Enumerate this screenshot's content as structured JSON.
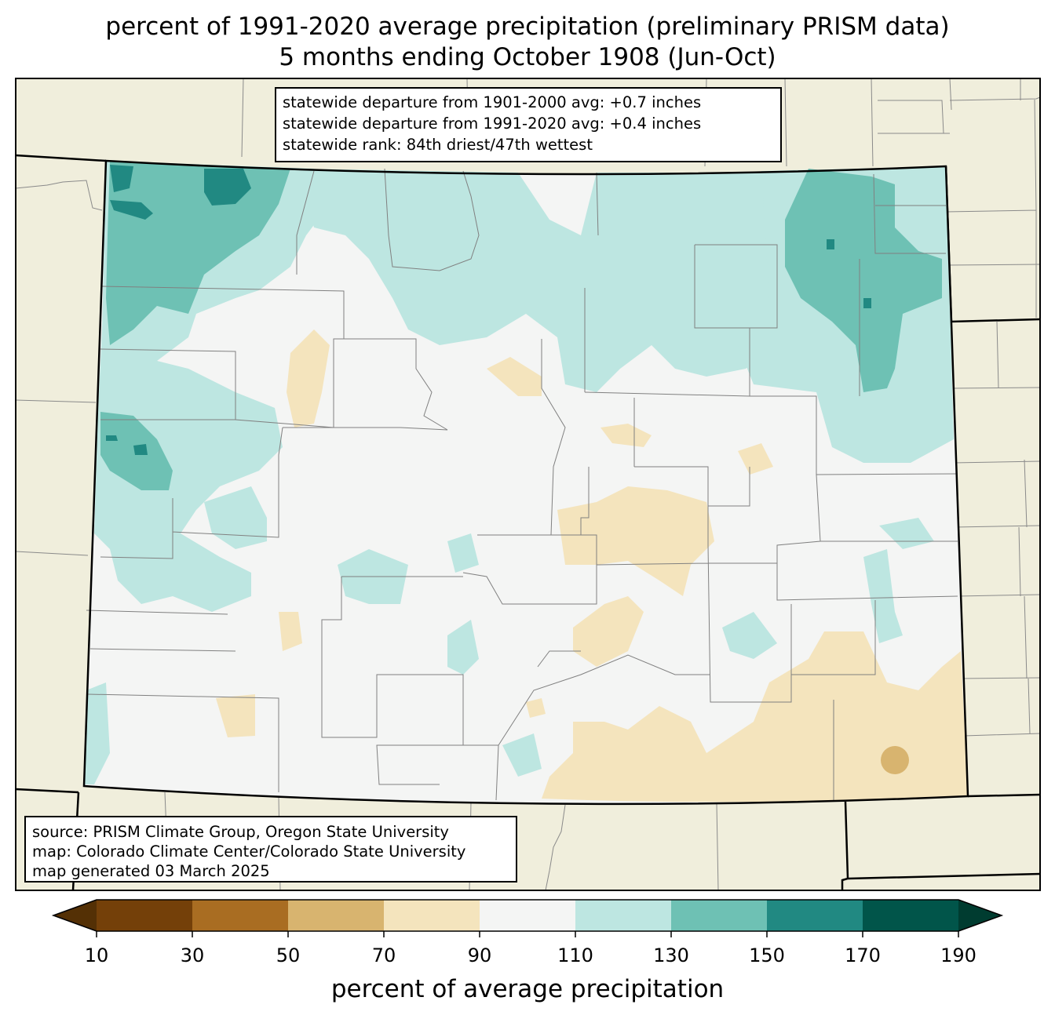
{
  "title": {
    "line1": "percent of 1991-2020 average precipitation (preliminary PRISM data)",
    "line2": "5 months ending October 1908 (Jun-Oct)"
  },
  "stats": {
    "line1": "statewide departure from 1901-2000 avg: +0.7 inches",
    "line2": "statewide departure from 1991-2020 avg: +0.4 inches",
    "line3": "statewide rank: 84th driest/47th wettest"
  },
  "source": {
    "line1": "source: PRISM Climate Group, Oregon State University",
    "line2": "map: Colorado Climate Center/Colorado State University",
    "line3": "map generated 03 March 2025"
  },
  "colorbar": {
    "label": "percent of average precipitation",
    "ticks": [
      "10",
      "30",
      "50",
      "70",
      "90",
      "110",
      "130",
      "150",
      "170",
      "190"
    ],
    "under_color": "#543005",
    "over_color": "#003c30",
    "bins": [
      {
        "range": [
          10,
          30
        ],
        "color": "#744009"
      },
      {
        "range": [
          30,
          50
        ],
        "color": "#a96d22"
      },
      {
        "range": [
          50,
          70
        ],
        "color": "#d8b46f"
      },
      {
        "range": [
          70,
          90
        ],
        "color": "#f4e4bd"
      },
      {
        "range": [
          90,
          110
        ],
        "color": "#f4f5f4"
      },
      {
        "range": [
          110,
          130
        ],
        "color": "#bde6e1"
      },
      {
        "range": [
          130,
          150
        ],
        "color": "#6ec1b4"
      },
      {
        "range": [
          150,
          170
        ],
        "color": "#218982"
      },
      {
        "range": [
          170,
          190
        ],
        "color": "#01554a"
      }
    ]
  },
  "colors": {
    "land_background": "#f0eedc",
    "border": "#000000",
    "county_lines": "#808080"
  }
}
